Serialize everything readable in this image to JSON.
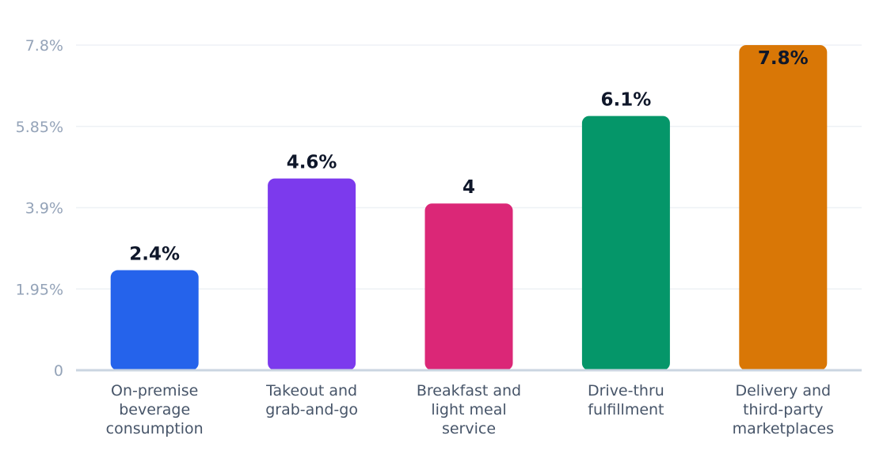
{
  "chart_data": {
    "type": "bar",
    "title": "",
    "xlabel": "",
    "ylabel": "",
    "ylim": [
      0,
      7.8
    ],
    "yticks": [
      0,
      1.95,
      3.9,
      5.85,
      7.8
    ],
    "ytick_labels": [
      "0",
      "1.95%",
      "3.9%",
      "5.85%",
      "7.8%"
    ],
    "grid": true,
    "categories": [
      [
        "On-premise",
        "beverage",
        "consumption"
      ],
      [
        "Takeout and",
        "grab-and-go"
      ],
      [
        "Breakfast and",
        "light meal",
        "service"
      ],
      [
        "Drive-thru",
        "fulfillment"
      ],
      [
        "Delivery and",
        "third-party",
        "marketplaces"
      ]
    ],
    "values": [
      2.4,
      4.6,
      4.0,
      6.1,
      7.8
    ],
    "value_labels": [
      "2.4%",
      "4.6%",
      "4",
      "6.1%",
      "7.8%"
    ],
    "colors": [
      "#2563eb",
      "#7c3aed",
      "#db2777",
      "#059669",
      "#d97706"
    ]
  }
}
